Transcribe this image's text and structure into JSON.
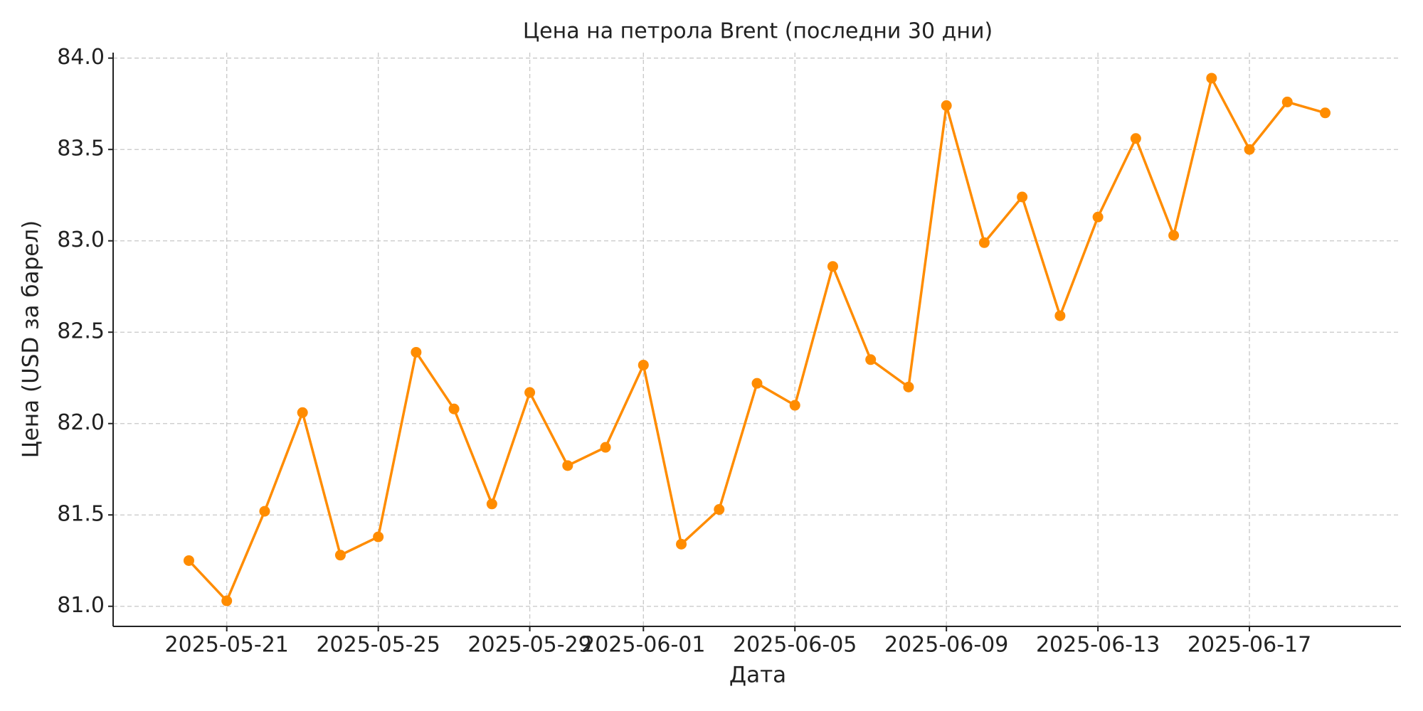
{
  "chart_data": {
    "type": "line",
    "title": "Цена на петрола Brent (последни 30 дни)",
    "x_label": "Дата",
    "y_label": "Цена (USD за барел)",
    "x": [
      "2025-05-20",
      "2025-05-21",
      "2025-05-22",
      "2025-05-23",
      "2025-05-24",
      "2025-05-25",
      "2025-05-26",
      "2025-05-27",
      "2025-05-28",
      "2025-05-29",
      "2025-05-30",
      "2025-05-31",
      "2025-06-01",
      "2025-06-02",
      "2025-06-03",
      "2025-06-04",
      "2025-06-05",
      "2025-06-06",
      "2025-06-07",
      "2025-06-08",
      "2025-06-09",
      "2025-06-10",
      "2025-06-11",
      "2025-06-12",
      "2025-06-13",
      "2025-06-14",
      "2025-06-15",
      "2025-06-16",
      "2025-06-17",
      "2025-06-18",
      "2025-06-19"
    ],
    "series": [
      {
        "name": "Brent",
        "color": "#ff8c00",
        "values": [
          81.25,
          81.03,
          81.52,
          82.06,
          81.28,
          81.38,
          82.39,
          82.08,
          81.56,
          82.17,
          81.77,
          81.87,
          82.32,
          81.34,
          81.53,
          82.22,
          82.1,
          82.86,
          82.35,
          82.2,
          83.74,
          82.99,
          83.24,
          82.59,
          83.13,
          83.56,
          83.03,
          83.89,
          83.5,
          83.76,
          83.7
        ]
      }
    ],
    "xlim": [
      "2025-05-18",
      "2025-06-21"
    ],
    "xticks": [
      "2025-05-21",
      "2025-05-25",
      "2025-05-29",
      "2025-06-01",
      "2025-06-05",
      "2025-06-09",
      "2025-06-13",
      "2025-06-17"
    ],
    "ylim": [
      80.89,
      84.03
    ],
    "yticks": [
      {
        "value": 81,
        "label": "81.0"
      },
      {
        "value": 81.5,
        "label": "81.5"
      },
      {
        "value": 82,
        "label": "82.0"
      },
      {
        "value": 82.5,
        "label": "82.5"
      },
      {
        "value": 83,
        "label": "83.0"
      },
      {
        "value": 83.5,
        "label": "83.5"
      },
      {
        "value": 84,
        "label": "84.0"
      }
    ],
    "grid": true
  }
}
